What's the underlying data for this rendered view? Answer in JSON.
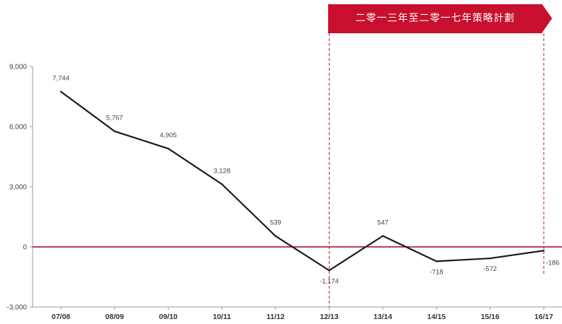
{
  "chart_data": {
    "type": "line",
    "categories": [
      "07/08",
      "08/09",
      "09/10",
      "10/11",
      "11/12",
      "12/13",
      "13/14",
      "14/15",
      "15/16",
      "16/17"
    ],
    "values": [
      7744,
      5767,
      4905,
      3128,
      539,
      -1174,
      547,
      -718,
      -572,
      -186
    ],
    "data_labels": [
      "7,744",
      "5,767",
      "4,905",
      "3,128",
      "539",
      "-1,174",
      "547",
      "-718",
      "-572",
      "-186"
    ],
    "y_ticks": [
      9000,
      6000,
      3000,
      0,
      -3000
    ],
    "y_tick_labels": [
      "9,000",
      "6,000",
      "3,000",
      "0",
      "-3,000"
    ],
    "ylim": [
      -3000,
      9000
    ],
    "grid": false,
    "colors": {
      "line": "#1a1a1a",
      "zero_line": "#a0001e",
      "accent": "#c8102e",
      "axis": "#999999"
    },
    "annotation": {
      "label": "二零一三年至二零一七年策略計劃",
      "from_category": "12/13",
      "to_category": "16/17"
    }
  }
}
